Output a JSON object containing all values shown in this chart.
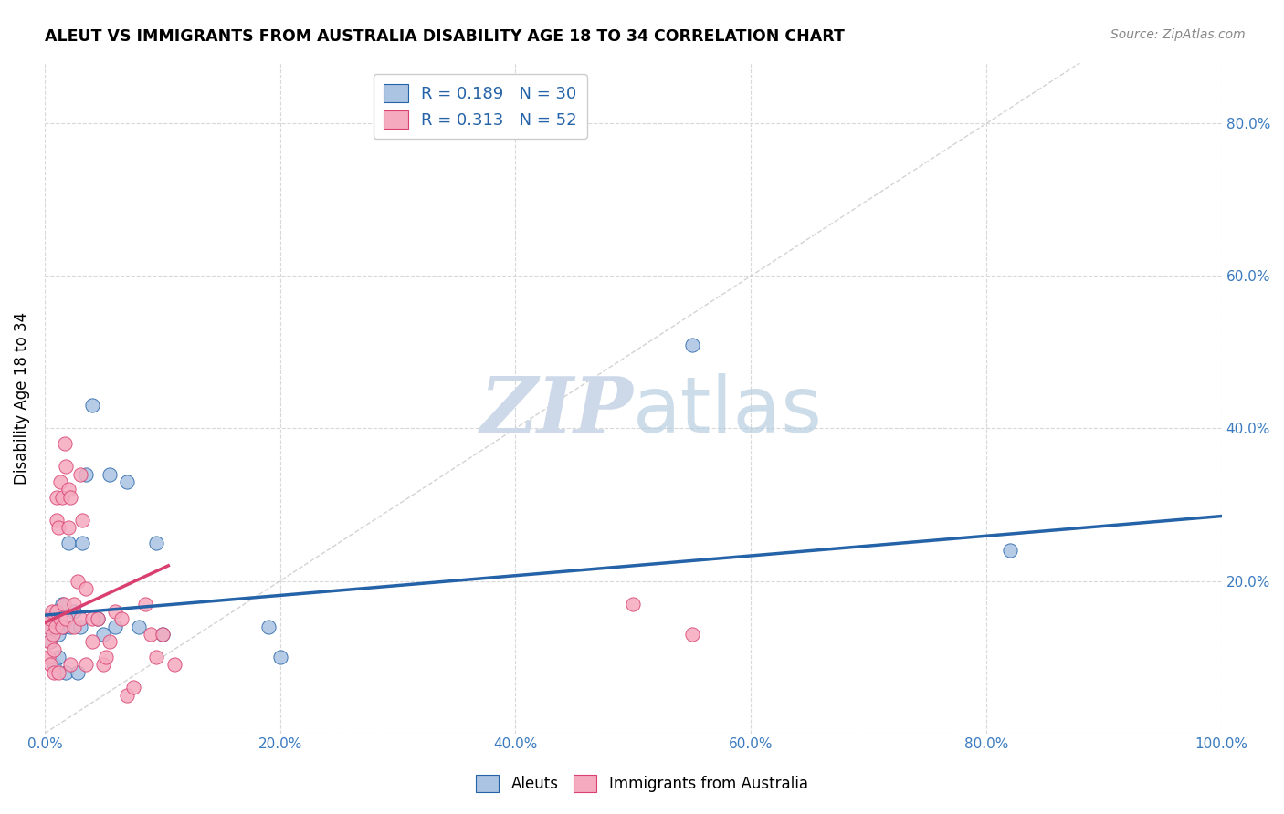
{
  "title": "ALEUT VS IMMIGRANTS FROM AUSTRALIA DISABILITY AGE 18 TO 34 CORRELATION CHART",
  "source": "Source: ZipAtlas.com",
  "ylabel": "Disability Age 18 to 34",
  "xlim": [
    0.0,
    1.0
  ],
  "ylim": [
    0.0,
    0.88
  ],
  "xticks": [
    0.0,
    0.2,
    0.4,
    0.6,
    0.8,
    1.0
  ],
  "xticklabels": [
    "0.0%",
    "20.0%",
    "40.0%",
    "60.0%",
    "80.0%",
    "100.0%"
  ],
  "yticks": [
    0.0,
    0.2,
    0.4,
    0.6,
    0.8
  ],
  "right_yticklabels": [
    "",
    "20.0%",
    "40.0%",
    "60.0%",
    "80.0%"
  ],
  "aleuts_R": 0.189,
  "aleuts_N": 30,
  "immigrants_R": 0.313,
  "immigrants_N": 52,
  "aleuts_color": "#aac4e2",
  "immigrants_color": "#f5aabf",
  "trendline_aleuts_color": "#2563a8",
  "trendline_immigrants_color": "#d94070",
  "diagonal_color": "#c8c8c8",
  "grid_color": "#d8d8d8",
  "aleuts_x": [
    0.005,
    0.005,
    0.007,
    0.008,
    0.01,
    0.012,
    0.012,
    0.015,
    0.016,
    0.018,
    0.02,
    0.022,
    0.025,
    0.028,
    0.03,
    0.032,
    0.035,
    0.04,
    0.045,
    0.05,
    0.055,
    0.06,
    0.07,
    0.08,
    0.095,
    0.1,
    0.19,
    0.2,
    0.55,
    0.82
  ],
  "aleuts_y": [
    0.14,
    0.12,
    0.15,
    0.09,
    0.16,
    0.13,
    0.1,
    0.17,
    0.14,
    0.08,
    0.25,
    0.14,
    0.16,
    0.08,
    0.14,
    0.25,
    0.34,
    0.43,
    0.15,
    0.13,
    0.34,
    0.14,
    0.33,
    0.14,
    0.25,
    0.13,
    0.14,
    0.1,
    0.51,
    0.24
  ],
  "immigrants_x": [
    0.002,
    0.003,
    0.004,
    0.005,
    0.005,
    0.006,
    0.007,
    0.008,
    0.008,
    0.009,
    0.01,
    0.01,
    0.01,
    0.012,
    0.012,
    0.013,
    0.013,
    0.015,
    0.015,
    0.016,
    0.017,
    0.018,
    0.018,
    0.02,
    0.02,
    0.022,
    0.022,
    0.025,
    0.025,
    0.028,
    0.03,
    0.03,
    0.032,
    0.035,
    0.035,
    0.04,
    0.04,
    0.045,
    0.05,
    0.052,
    0.055,
    0.06,
    0.065,
    0.07,
    0.075,
    0.085,
    0.09,
    0.095,
    0.1,
    0.11,
    0.5,
    0.55
  ],
  "immigrants_y": [
    0.14,
    0.1,
    0.12,
    0.15,
    0.09,
    0.16,
    0.13,
    0.11,
    0.08,
    0.14,
    0.31,
    0.28,
    0.16,
    0.27,
    0.08,
    0.33,
    0.15,
    0.31,
    0.14,
    0.17,
    0.38,
    0.35,
    0.15,
    0.32,
    0.27,
    0.31,
    0.09,
    0.17,
    0.14,
    0.2,
    0.34,
    0.15,
    0.28,
    0.19,
    0.09,
    0.15,
    0.12,
    0.15,
    0.09,
    0.1,
    0.12,
    0.16,
    0.15,
    0.05,
    0.06,
    0.17,
    0.13,
    0.1,
    0.13,
    0.09,
    0.17,
    0.13
  ],
  "trendline_aleuts_x0": 0.0,
  "trendline_aleuts_x1": 1.0,
  "trendline_aleuts_y0": 0.155,
  "trendline_aleuts_y1": 0.285,
  "trendline_immigrants_x0": 0.0,
  "trendline_immigrants_x1": 0.105,
  "trendline_immigrants_y0": 0.145,
  "trendline_immigrants_y1": 0.22,
  "watermark_zip": "ZIP",
  "watermark_atlas": "atlas",
  "watermark_color": "#cdd8e8",
  "marker_size": 120
}
